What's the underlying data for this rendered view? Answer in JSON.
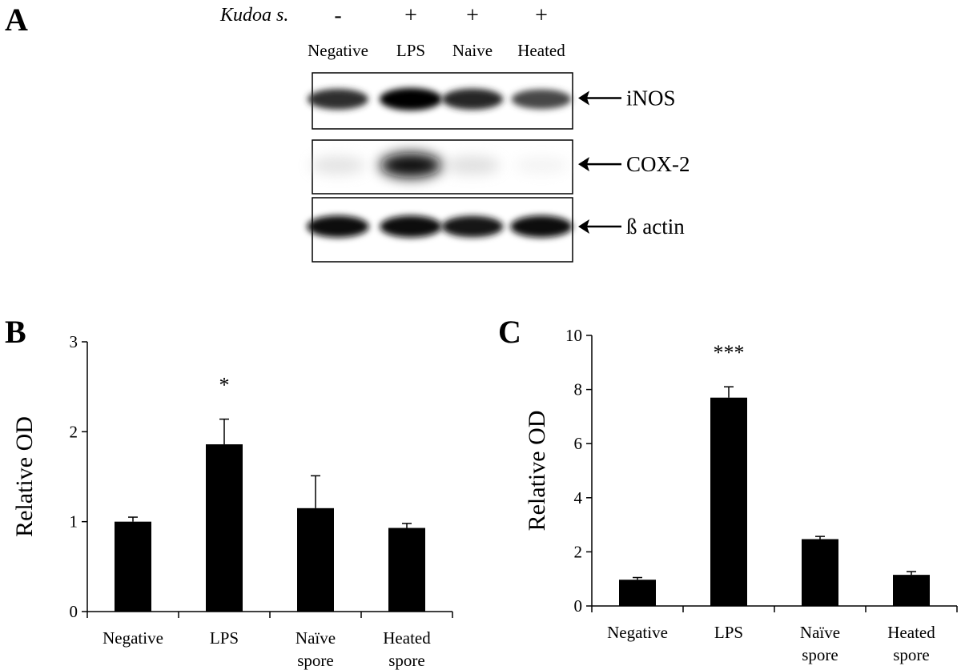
{
  "panel_a": {
    "label": "A",
    "treatment_label": "Kudoa s.",
    "lanes": [
      {
        "sign": "-",
        "name": "Negative"
      },
      {
        "sign": "+",
        "name": "LPS"
      },
      {
        "sign": "+",
        "name": "Naive"
      },
      {
        "sign": "+",
        "name": "Heated"
      }
    ],
    "blots": [
      {
        "target": "iNOS",
        "band_intensity": [
          0.82,
          1.0,
          0.85,
          0.72
        ]
      },
      {
        "target": "COX-2",
        "band_intensity": [
          0.2,
          0.95,
          0.22,
          0.1
        ]
      },
      {
        "target": "ß actin",
        "band_intensity": [
          0.95,
          0.95,
          0.9,
          0.95
        ]
      }
    ]
  },
  "chart_data": [
    {
      "type": "bar",
      "label": "B",
      "ylabel": "Relative OD",
      "xlabel": "",
      "ylim": [
        0,
        3
      ],
      "yticks": [
        "0",
        "1",
        "2",
        "3"
      ],
      "categories": [
        [
          "Negative"
        ],
        [
          "LPS"
        ],
        [
          "Naïve",
          "spore"
        ],
        [
          "Heated",
          "spore"
        ]
      ],
      "values": [
        1.0,
        1.86,
        1.15,
        0.93
      ],
      "errors": [
        0.05,
        0.28,
        0.36,
        0.05
      ],
      "annotations": [
        "",
        "*",
        "",
        ""
      ],
      "color": "#000000"
    },
    {
      "type": "bar",
      "label": "C",
      "ylabel": "Relative OD",
      "xlabel": "",
      "ylim": [
        0,
        10
      ],
      "yticks": [
        "0",
        "2",
        "4",
        "6",
        "8",
        "10"
      ],
      "categories": [
        [
          "Negative"
        ],
        [
          "LPS"
        ],
        [
          "Naïve",
          "spore"
        ],
        [
          "Heated",
          "spore"
        ]
      ],
      "values": [
        0.97,
        7.7,
        2.47,
        1.15
      ],
      "errors": [
        0.08,
        0.4,
        0.1,
        0.12
      ],
      "annotations": [
        "",
        "***",
        "",
        ""
      ],
      "color": "#000000"
    }
  ]
}
